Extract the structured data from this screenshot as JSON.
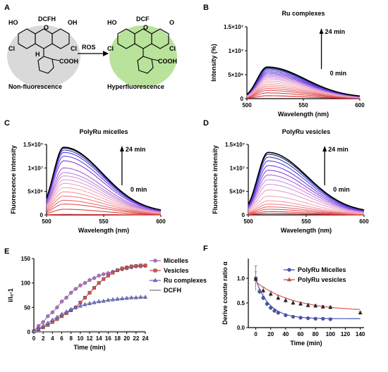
{
  "panels": {
    "A": {
      "letter": "A",
      "left_molecule": {
        "name": "DCFH",
        "ho": "HO",
        "oh": "OH",
        "cl_left": "Cl",
        "cl_right": "Cl",
        "h": "H",
        "cooh": "COOH",
        "caption": "Non-fluorescence",
        "highlight_color": "#d9d9d9"
      },
      "arrow_label": "ROS",
      "right_molecule": {
        "name": "DCF",
        "ho": "HO",
        "o": "O",
        "cl_left": "Cl",
        "cl_right": "Cl",
        "cooh": "COOH",
        "caption": "Hyperfluorescence",
        "highlight_color": "#b9e29a"
      }
    },
    "B": {
      "letter": "B"
    },
    "C": {
      "letter": "C"
    },
    "D": {
      "letter": "D"
    },
    "E": {
      "letter": "E"
    },
    "F": {
      "letter": "F"
    }
  },
  "chart_data": [
    {
      "id": "B",
      "type": "line",
      "title": "Ru complexes",
      "xlabel": "Wavelength (nm)",
      "ylabel": "Intensity (%)",
      "xlim": [
        500,
        600
      ],
      "ylim": [
        0,
        15000000
      ],
      "xticks": [
        {
          "v": 500,
          "label": "500"
        },
        {
          "v": 550,
          "label": "550"
        },
        {
          "v": 600,
          "label": "600"
        }
      ],
      "yticks": [
        {
          "v": 0,
          "label": "0"
        },
        {
          "v": 5000000,
          "label": "5×10⁶"
        },
        {
          "v": 10000000,
          "label": "1×10⁷"
        },
        {
          "v": 15000000,
          "label": "1.5×10⁷"
        }
      ],
      "peak_nm": 518,
      "curve_peaks": [
        600000,
        1200000,
        1700000,
        2100000,
        2500000,
        2900000,
        3300000,
        3700000,
        4100000,
        4400000,
        4700000,
        5000000,
        5300000,
        5600000,
        5900000,
        6200000,
        6400000,
        6600000
      ],
      "annotation": {
        "start": "0 min",
        "end": "24 min"
      }
    },
    {
      "id": "C",
      "type": "line",
      "title": "PolyRu micelles",
      "xlabel": "Wavelength (nm)",
      "ylabel": "Fluorescence intensity",
      "xlim": [
        500,
        600
      ],
      "ylim": [
        0,
        15000000
      ],
      "xticks": [
        {
          "v": 500,
          "label": "500"
        },
        {
          "v": 550,
          "label": "550"
        },
        {
          "v": 600,
          "label": "600"
        }
      ],
      "yticks": [
        {
          "v": 0,
          "label": "0"
        },
        {
          "v": 5000000,
          "label": "5×10⁶"
        },
        {
          "v": 10000000,
          "label": "1×10⁷"
        },
        {
          "v": 15000000,
          "label": "1.5×10⁷"
        }
      ],
      "peak_nm": 515,
      "curve_peaks": [
        100000,
        1200000,
        2300000,
        3100000,
        4000000,
        4900000,
        5800000,
        6700000,
        7500000,
        8300000,
        9000000,
        10000000,
        11500000,
        12500000,
        13300000,
        13800000,
        14200000,
        14400000
      ],
      "annotation": {
        "start": "0 min",
        "end": "24 min"
      }
    },
    {
      "id": "D",
      "type": "line",
      "title": "PolyRu vesicles",
      "xlabel": "Wavelength (nm)",
      "ylabel": "Fluorescence intensity",
      "xlim": [
        500,
        600
      ],
      "ylim": [
        0,
        15000000
      ],
      "xticks": [
        {
          "v": 500,
          "label": "500"
        },
        {
          "v": 550,
          "label": "550"
        },
        {
          "v": 600,
          "label": "600"
        }
      ],
      "yticks": [
        {
          "v": 0,
          "label": "0"
        },
        {
          "v": 5000000,
          "label": "5×10⁶"
        },
        {
          "v": 10000000,
          "label": "1×10⁷"
        },
        {
          "v": 15000000,
          "label": "1.5×10⁷"
        }
      ],
      "peak_nm": 517,
      "curve_peaks": [
        300000,
        700000,
        1200000,
        1700000,
        2300000,
        3000000,
        4000000,
        5300000,
        6500000,
        7500000,
        8500000,
        9500000,
        10500000,
        11500000,
        12300000,
        12900000,
        13300000
      ],
      "annotation": {
        "start": "0 min",
        "end": "24 min"
      }
    },
    {
      "id": "E",
      "type": "line",
      "xlabel": "Time (min)",
      "ylabel": "I/I₀-1",
      "xlim": [
        0,
        24
      ],
      "ylim": [
        0,
        150
      ],
      "xticks": [
        {
          "v": 0,
          "label": "0"
        },
        {
          "v": 2,
          "label": "2"
        },
        {
          "v": 4,
          "label": "4"
        },
        {
          "v": 6,
          "label": "6"
        },
        {
          "v": 8,
          "label": "8"
        },
        {
          "v": 10,
          "label": "10"
        },
        {
          "v": 12,
          "label": "12"
        },
        {
          "v": 14,
          "label": "14"
        },
        {
          "v": 16,
          "label": "16"
        },
        {
          "v": 18,
          "label": "18"
        },
        {
          "v": 20,
          "label": "20"
        },
        {
          "v": 22,
          "label": "22"
        },
        {
          "v": 24,
          "label": "24"
        }
      ],
      "yticks": [
        {
          "v": 0,
          "label": "0"
        },
        {
          "v": 50,
          "label": "50"
        },
        {
          "v": 100,
          "label": "100"
        },
        {
          "v": 150,
          "label": "150"
        }
      ],
      "legend": "top-right",
      "series": [
        {
          "name": "Micelles",
          "color": "#b070c8",
          "marker": "circle",
          "points": [
            [
              0,
              2
            ],
            [
              1,
              12
            ],
            [
              2,
              20
            ],
            [
              3,
              32
            ],
            [
              4,
              40
            ],
            [
              5,
              50
            ],
            [
              6,
              62
            ],
            [
              7,
              70
            ],
            [
              8,
              80
            ],
            [
              9,
              88
            ],
            [
              10,
              95
            ],
            [
              11,
              100
            ],
            [
              12,
              106
            ],
            [
              13,
              110
            ],
            [
              14,
              115
            ],
            [
              15,
              118
            ],
            [
              16,
              120
            ],
            [
              17,
              123
            ],
            [
              18,
              126
            ],
            [
              19,
              128
            ],
            [
              20,
              130
            ],
            [
              21,
              132
            ],
            [
              22,
              134
            ],
            [
              23,
              134
            ],
            [
              24,
              135
            ]
          ]
        },
        {
          "name": "Vesicles",
          "color": "#d45050",
          "marker": "square",
          "points": [
            [
              0,
              1
            ],
            [
              1,
              5
            ],
            [
              2,
              9
            ],
            [
              3,
              14
            ],
            [
              4,
              20
            ],
            [
              5,
              26
            ],
            [
              6,
              32
            ],
            [
              7,
              38
            ],
            [
              8,
              44
            ],
            [
              9,
              50
            ],
            [
              10,
              60
            ],
            [
              11,
              70
            ],
            [
              12,
              80
            ],
            [
              13,
              90
            ],
            [
              14,
              100
            ],
            [
              15,
              108
            ],
            [
              16,
              115
            ],
            [
              17,
              121
            ],
            [
              18,
              126
            ],
            [
              19,
              130
            ],
            [
              20,
              132
            ],
            [
              21,
              134
            ],
            [
              22,
              135
            ],
            [
              23,
              136
            ],
            [
              24,
              136
            ]
          ]
        },
        {
          "name": "Ru complexes",
          "color": "#6f74d8",
          "marker": "triangle",
          "points": [
            [
              0,
              1
            ],
            [
              1,
              6
            ],
            [
              2,
              12
            ],
            [
              3,
              18
            ],
            [
              4,
              24
            ],
            [
              5,
              30
            ],
            [
              6,
              36
            ],
            [
              7,
              41
            ],
            [
              8,
              46
            ],
            [
              9,
              50
            ],
            [
              10,
              53
            ],
            [
              11,
              56
            ],
            [
              12,
              58
            ],
            [
              13,
              60
            ],
            [
              14,
              62
            ],
            [
              15,
              63
            ],
            [
              16,
              65
            ],
            [
              17,
              66
            ],
            [
              18,
              67
            ],
            [
              19,
              68
            ],
            [
              20,
              69
            ],
            [
              21,
              70
            ],
            [
              22,
              70
            ],
            [
              23,
              71
            ],
            [
              24,
              71
            ]
          ]
        },
        {
          "name": "DCFH",
          "color": "#888888",
          "marker": "none",
          "points": [
            [
              0,
              0.5
            ],
            [
              2,
              0.5
            ],
            [
              4,
              0.6
            ],
            [
              6,
              0.6
            ],
            [
              8,
              0.7
            ],
            [
              10,
              0.7
            ],
            [
              12,
              0.8
            ],
            [
              14,
              0.8
            ],
            [
              16,
              0.9
            ],
            [
              18,
              0.9
            ],
            [
              20,
              1
            ],
            [
              22,
              1
            ],
            [
              24,
              1
            ]
          ]
        }
      ]
    },
    {
      "id": "F",
      "type": "scatter",
      "xlabel": "Time (min)",
      "ylabel": "Derive counte ratio α",
      "xlim": [
        -10,
        145
      ],
      "ylim": [
        0,
        1.4
      ],
      "xticks": [
        {
          "v": 0,
          "label": "0"
        },
        {
          "v": 20,
          "label": "20"
        },
        {
          "v": 40,
          "label": "40"
        },
        {
          "v": 60,
          "label": "60"
        },
        {
          "v": 80,
          "label": "80"
        },
        {
          "v": 100,
          "label": "100"
        },
        {
          "v": 120,
          "label": "120"
        },
        {
          "v": 140,
          "label": "140"
        }
      ],
      "yticks": [
        {
          "v": 0,
          "label": "0.0"
        },
        {
          "v": 0.5,
          "label": "0.5"
        },
        {
          "v": 1.0,
          "label": "1.0"
        }
      ],
      "legend": "top-right",
      "series": [
        {
          "name": "PolyRu Micelles",
          "color": "#4a55b8",
          "marker": "circle",
          "points": [
            [
              0,
              1.0
            ],
            [
              5,
              0.73
            ],
            [
              10,
              0.6
            ],
            [
              15,
              0.48
            ],
            [
              20,
              0.4
            ],
            [
              25,
              0.34
            ],
            [
              30,
              0.3
            ],
            [
              40,
              0.25
            ],
            [
              50,
              0.22
            ],
            [
              60,
              0.2
            ],
            [
              70,
              0.19
            ],
            [
              80,
              0.18
            ],
            [
              90,
              0.18
            ],
            [
              100,
              0.17
            ]
          ],
          "errors": [
            0.25,
            0.05,
            0.04,
            0.03,
            0.03,
            0.02,
            0.02,
            0.02,
            0.02,
            0.02,
            0.02,
            0.02,
            0.02,
            0.02
          ],
          "fit": {
            "a": 0.8,
            "k": 0.055,
            "c": 0.18
          }
        },
        {
          "name": "PolyRu vesicles",
          "color": "#e05555",
          "marker": "triangle",
          "points": [
            [
              0,
              0.98
            ],
            [
              10,
              0.75
            ],
            [
              20,
              0.68
            ],
            [
              30,
              0.6
            ],
            [
              40,
              0.55
            ],
            [
              50,
              0.5
            ],
            [
              60,
              0.48
            ],
            [
              70,
              0.45
            ],
            [
              80,
              0.44
            ],
            [
              90,
              0.42
            ],
            [
              100,
              0.41
            ],
            [
              140,
              0.3
            ]
          ],
          "errors": [
            0.15,
            0.07,
            0.06,
            0.05,
            0.05,
            0.04,
            0.04,
            0.04,
            0.03,
            0.03,
            0.03,
            0.03
          ],
          "fit": {
            "a": 0.6,
            "k": 0.02,
            "c": 0.33
          }
        }
      ]
    }
  ]
}
